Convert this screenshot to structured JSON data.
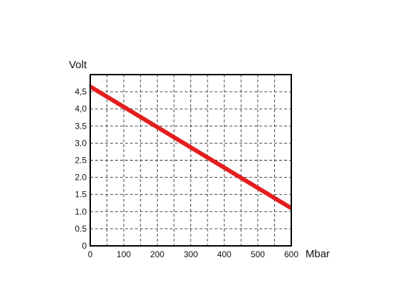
{
  "chart_data": {
    "type": "line",
    "title": "",
    "ylabel": "Volt",
    "xlabel": "Mbar",
    "xlim": [
      0,
      600
    ],
    "ylim": [
      0,
      5
    ],
    "x_grid_step": 50,
    "y_grid_step": 0.5,
    "grid": true,
    "x_ticks": [
      {
        "value": 0,
        "label": "0"
      },
      {
        "value": 100,
        "label": "100"
      },
      {
        "value": 200,
        "label": "200"
      },
      {
        "value": 300,
        "label": "300"
      },
      {
        "value": 400,
        "label": "400"
      },
      {
        "value": 500,
        "label": "500"
      },
      {
        "value": 600,
        "label": "600"
      }
    ],
    "y_ticks": [
      {
        "value": 0,
        "label": "0"
      },
      {
        "value": 0.5,
        "label": "0.5"
      },
      {
        "value": 1.0,
        "label": "1.0"
      },
      {
        "value": 1.5,
        "label": "1.5"
      },
      {
        "value": 2.0,
        "label": "2.0"
      },
      {
        "value": 2.5,
        "label": "2.5"
      },
      {
        "value": 3.0,
        "label": "3.0"
      },
      {
        "value": 3.5,
        "label": "3.5"
      },
      {
        "value": 4.0,
        "label": "4,0"
      },
      {
        "value": 4.5,
        "label": "4,5"
      }
    ],
    "series": [
      {
        "color": "#e41e1e",
        "x": [
          0,
          600
        ],
        "y": [
          4.65,
          1.1
        ]
      }
    ]
  }
}
